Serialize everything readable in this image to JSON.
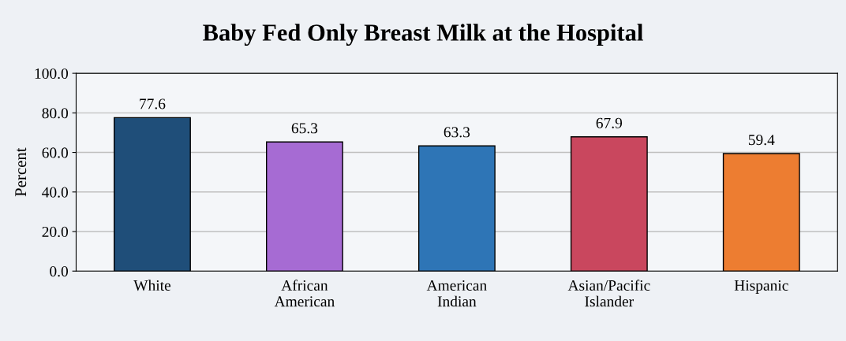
{
  "chart_data": {
    "type": "bar",
    "title": "Baby Fed Only Breast Milk at the Hospital",
    "ylabel": "Percent",
    "categories": [
      "White",
      "African American",
      "American Indian",
      "Asian/Pacific Islander",
      "Hispanic"
    ],
    "values": [
      77.6,
      65.3,
      63.3,
      67.9,
      59.4
    ],
    "colors": [
      "#1f4e79",
      "#a66bd3",
      "#2e75b6",
      "#c9475e",
      "#ed7d31"
    ],
    "ylim": [
      0,
      100
    ],
    "yticks": [
      {
        "value": 0,
        "label": "0.0"
      },
      {
        "value": 20,
        "label": "20.0"
      },
      {
        "value": 40,
        "label": "40.0"
      },
      {
        "value": 60,
        "label": "60.0"
      },
      {
        "value": 80,
        "label": "80.0"
      },
      {
        "value": 100,
        "label": "100.0"
      }
    ],
    "grid": "y",
    "data_labels": true
  }
}
